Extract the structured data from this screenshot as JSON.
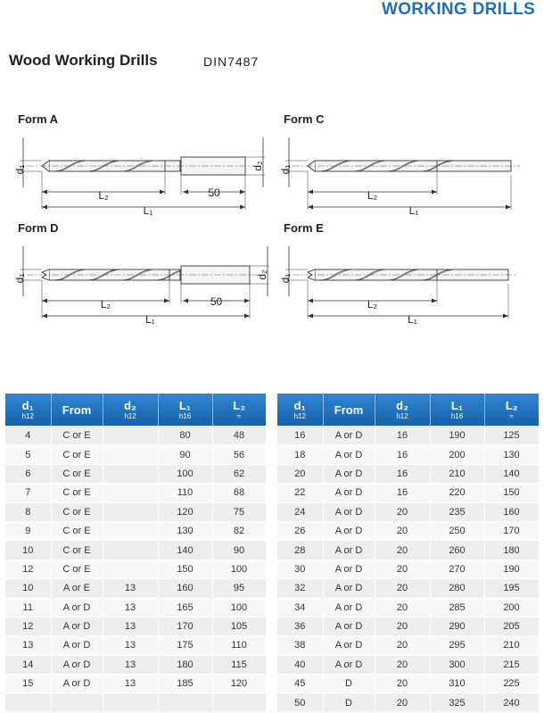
{
  "header": {
    "brand": "WORKING DRILLS"
  },
  "title": "Wood Working Drills",
  "standard": "DIN7487",
  "forms": [
    {
      "label": "Form A",
      "d1": "d₁",
      "d2": "d₂",
      "L2": "L₂",
      "L1": "L₁",
      "shank": 50
    },
    {
      "label": "Form C",
      "d1": "d₁",
      "L2": "L₂",
      "L1": "L₁"
    },
    {
      "label": "Form D",
      "d1": "d₁",
      "d2": "d₂",
      "L2": "L₂",
      "L1": "L₁",
      "shank": 50
    },
    {
      "label": "Form E",
      "d1": "d₁",
      "L2": "L₂",
      "L1": "L₁"
    }
  ],
  "tables": [
    {
      "columns": [
        {
          "main": "d₁",
          "sub": "h12"
        },
        {
          "main": "From"
        },
        {
          "main": "d₂",
          "sub": "h12"
        },
        {
          "main": "L₁",
          "sub": "h16"
        },
        {
          "main": "L₂",
          "sub": "≈"
        }
      ],
      "rows": [
        [
          4,
          "C or E",
          null,
          80,
          48
        ],
        [
          5,
          "C or E",
          null,
          90,
          56
        ],
        [
          6,
          "C or E",
          null,
          100,
          62
        ],
        [
          7,
          "C or E",
          null,
          110,
          68
        ],
        [
          8,
          "C or E",
          null,
          120,
          75
        ],
        [
          9,
          "C or E",
          null,
          130,
          82
        ],
        [
          10,
          "C or E",
          null,
          140,
          90
        ],
        [
          12,
          "C or E",
          null,
          150,
          100
        ],
        [
          10,
          "A or E",
          13,
          160,
          95
        ],
        [
          11,
          "A or D",
          13,
          165,
          100
        ],
        [
          12,
          "A or D",
          13,
          170,
          105
        ],
        [
          13,
          "A or D",
          13,
          175,
          110
        ],
        [
          14,
          "A or D",
          13,
          180,
          115
        ],
        [
          15,
          "A or D",
          13,
          185,
          120
        ]
      ]
    },
    {
      "columns": [
        {
          "main": "d₁",
          "sub": "h12"
        },
        {
          "main": "From"
        },
        {
          "main": "d₂",
          "sub": "h12"
        },
        {
          "main": "L₁",
          "sub": "h16"
        },
        {
          "main": "L₂",
          "sub": "≈"
        }
      ],
      "rows": [
        [
          16,
          "A or D",
          16,
          190,
          125
        ],
        [
          18,
          "A or D",
          16,
          200,
          130
        ],
        [
          20,
          "A or D",
          16,
          210,
          140
        ],
        [
          22,
          "A or D",
          16,
          220,
          150
        ],
        [
          24,
          "A or D",
          20,
          235,
          160
        ],
        [
          26,
          "A or D",
          20,
          250,
          170
        ],
        [
          28,
          "A or D",
          20,
          260,
          180
        ],
        [
          30,
          "A or D",
          20,
          270,
          190
        ],
        [
          32,
          "A or D",
          20,
          280,
          195
        ],
        [
          34,
          "A or D",
          20,
          285,
          200
        ],
        [
          36,
          "A or D",
          20,
          290,
          205
        ],
        [
          38,
          "A or D",
          20,
          295,
          210
        ],
        [
          40,
          "A or D",
          20,
          300,
          215
        ],
        [
          45,
          "D",
          20,
          310,
          225
        ],
        [
          50,
          "D",
          20,
          325,
          240
        ]
      ]
    }
  ]
}
